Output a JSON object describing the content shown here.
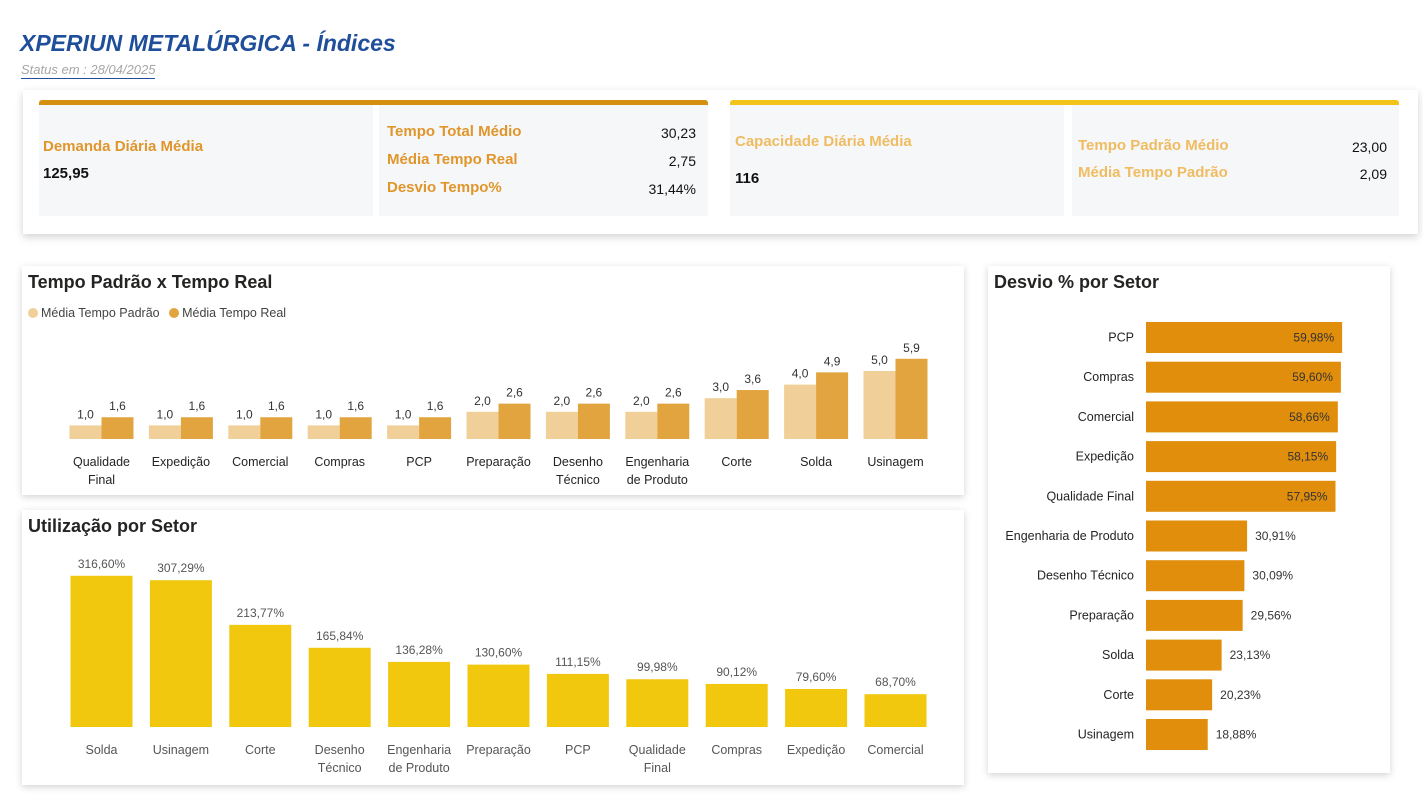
{
  "header": {
    "title": "XPERIUN METALÚRGICA - Índices",
    "status": "Status em : 28/04/2025"
  },
  "kpis": {
    "demanda": {
      "label": "Demanda Diária Média",
      "value": "125,95"
    },
    "tempo_group": [
      {
        "label": "Tempo Total Médio",
        "value": "30,23"
      },
      {
        "label": "Média Tempo Real",
        "value": "2,75"
      },
      {
        "label": "Desvio Tempo%",
        "value": "31,44%"
      }
    ],
    "capacidade": {
      "label": "Capacidade Diária Média",
      "value": "116"
    },
    "padrao_group": [
      {
        "label": "Tempo Padrão Médio",
        "value": "23,00"
      },
      {
        "label": "Média Tempo Padrão",
        "value": "2,09"
      }
    ]
  },
  "colors": {
    "title_blue": "#1f4e9a",
    "kpi_orange": "#d48f0f",
    "kpi_yellow": "#f2c318",
    "label_orange": "#e0962a",
    "label_light": "#efbc61",
    "bar_light": "#f0cf98",
    "bar_dark": "#e2a43e",
    "bar_yellow": "#f2c80f",
    "bar_orange": "#e08e0b"
  },
  "chart_data": [
    {
      "type": "bar",
      "title": "Tempo Padrão x Tempo Real",
      "legend_position": "top-left",
      "categories": [
        "Qualidade Final",
        "Expedição",
        "Comercial",
        "Compras",
        "PCP",
        "Preparação",
        "Desenho Técnico",
        "Engenharia de Produto",
        "Corte",
        "Solda",
        "Usinagem"
      ],
      "series": [
        {
          "name": "Média Tempo Padrão",
          "values": [
            1.0,
            1.0,
            1.0,
            1.0,
            1.0,
            2.0,
            2.0,
            2.0,
            3.0,
            4.0,
            5.0
          ],
          "labels": [
            "1,0",
            "1,0",
            "1,0",
            "1,0",
            "1,0",
            "2,0",
            "2,0",
            "2,0",
            "3,0",
            "4,0",
            "5,0"
          ]
        },
        {
          "name": "Média Tempo Real",
          "values": [
            1.6,
            1.6,
            1.6,
            1.6,
            1.6,
            2.6,
            2.6,
            2.6,
            3.6,
            4.9,
            5.9
          ],
          "labels": [
            "1,6",
            "1,6",
            "1,6",
            "1,6",
            "1,6",
            "2,6",
            "2,6",
            "2,6",
            "3,6",
            "4,9",
            "5,9"
          ]
        }
      ]
    },
    {
      "type": "bar",
      "title": "Utilização por Setor",
      "categories": [
        "Solda",
        "Usinagem",
        "Corte",
        "Desenho Técnico",
        "Engenharia de Produto",
        "Preparação",
        "PCP",
        "Qualidade Final",
        "Compras",
        "Expedição",
        "Comercial"
      ],
      "values": [
        316.6,
        307.29,
        213.77,
        165.84,
        136.28,
        130.6,
        111.15,
        99.98,
        90.12,
        79.6,
        68.7
      ],
      "labels": [
        "316,60%",
        "307,29%",
        "213,77%",
        "165,84%",
        "136,28%",
        "130,60%",
        "111,15%",
        "99,98%",
        "90,12%",
        "79,60%",
        "68,70%"
      ]
    },
    {
      "type": "bar",
      "orientation": "horizontal",
      "title": "Desvio % por Setor",
      "categories": [
        "PCP",
        "Compras",
        "Comercial",
        "Expedição",
        "Qualidade Final",
        "Engenharia de Produto",
        "Desenho Técnico",
        "Preparação",
        "Solda",
        "Corte",
        "Usinagem"
      ],
      "values": [
        59.98,
        59.6,
        58.66,
        58.15,
        57.95,
        30.91,
        30.09,
        29.56,
        23.13,
        20.23,
        18.88
      ],
      "labels": [
        "59,98%",
        "59,60%",
        "58,66%",
        "58,15%",
        "57,95%",
        "30,91%",
        "30,09%",
        "29,56%",
        "23,13%",
        "20,23%",
        "18,88%"
      ]
    }
  ]
}
